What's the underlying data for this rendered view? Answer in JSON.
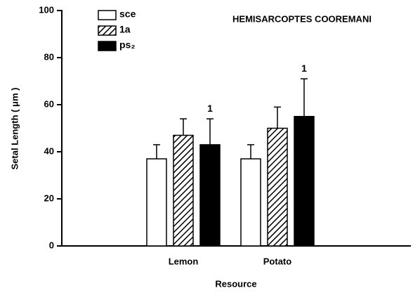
{
  "chart_data": {
    "type": "bar",
    "title": "HEMISARCOPTES COOREMANI",
    "x_label": "Resource",
    "y_label": "Setal Length ( μm )",
    "categories": [
      "Lemon",
      "Potato"
    ],
    "series": [
      {
        "name": "sce",
        "color": "#ffffff",
        "values": [
          37,
          37
        ],
        "errors": [
          6,
          6
        ]
      },
      {
        "name": "1a",
        "color": "#ffffff",
        "pattern": "hatch",
        "values": [
          47,
          50
        ],
        "errors": [
          7,
          9
        ]
      },
      {
        "name": "ps₂",
        "color": "#000000",
        "values": [
          43,
          55
        ],
        "errors": [
          11,
          16
        ]
      }
    ],
    "annotations": [
      {
        "text": "1",
        "category": "Lemon",
        "series": "ps₂"
      },
      {
        "text": "1",
        "category": "Potato",
        "series": "ps₂"
      }
    ],
    "ylim": [
      0,
      100
    ],
    "yticks": [
      0,
      20,
      40,
      60,
      80,
      100
    ],
    "legend": "top-left"
  }
}
